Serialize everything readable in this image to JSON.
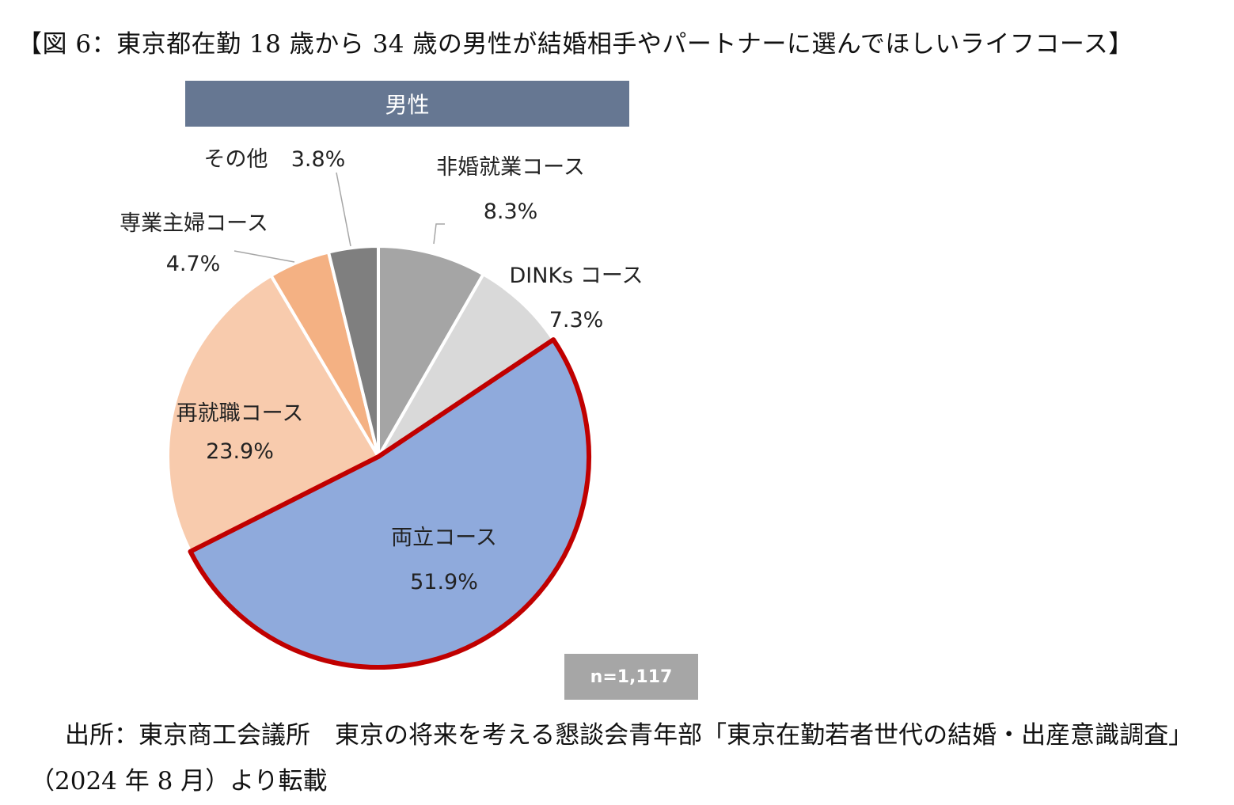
{
  "figure_title": "【図 6：東京都在勤 18 歳から 34 歳の男性が結婚相手やパートナーに選んでほしいライフコース】",
  "source_note": "出所：東京商工会議所　東京の将来を考える懇談会青年部「東京在勤若者世代の結婚・出産意識調査」（2024 年 8 月）より転載",
  "chart_data": {
    "type": "pie",
    "title": "男性",
    "annotation": "n=1,117",
    "slices": [
      {
        "label": "非婚就業コース",
        "value": 8.3,
        "display": "8.3%",
        "color": "#a5a5a5"
      },
      {
        "label": "DINKs コース",
        "value": 7.3,
        "display": "7.3%",
        "color": "#d9d9d9"
      },
      {
        "label": "両立コース",
        "value": 51.9,
        "display": "51.9%",
        "color": "#8faadc",
        "highlight": true,
        "highlight_color": "#c00000"
      },
      {
        "label": "再就職コース",
        "value": 23.9,
        "display": "23.9%",
        "color": "#f8cbad"
      },
      {
        "label": "専業主婦コース",
        "value": 4.7,
        "display": "4.7%",
        "color": "#f4b183"
      },
      {
        "label": "その他",
        "value": 3.8,
        "display": "3.8%",
        "color": "#7f7f7f"
      }
    ]
  }
}
